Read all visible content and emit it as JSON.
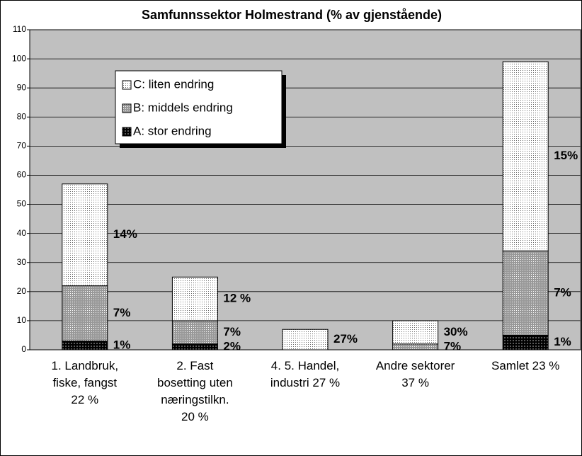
{
  "chart_data": {
    "type": "stacked_bar",
    "title": "Samfunnssektor Holmestrand  (% av gjenstående)",
    "categories": [
      "1. Landbruk,\nfiske, fangst\n22 %",
      "2. Fast\nbosetting uten\nnæringstilkn.\n20 %",
      "4. 5. Handel,\nindustri 27 %",
      "Andre sektorer\n37 %",
      "Samlet 23 %"
    ],
    "series": [
      {
        "name": "A: stor endring",
        "color": "#000000",
        "values": [
          3,
          2,
          0,
          0,
          5
        ],
        "segment_annotations": [
          "1%",
          "2%",
          null,
          null,
          "1%"
        ]
      },
      {
        "name": "B: middels endring",
        "color": "#999999",
        "values": [
          19,
          8,
          0,
          2,
          29
        ],
        "segment_annotations": [
          "7%",
          "7%",
          null,
          "7%",
          "7%"
        ]
      },
      {
        "name": "C: liten endring",
        "color": "#ffffff",
        "values": [
          35,
          15,
          7,
          8,
          65
        ],
        "segment_annotations": [
          "14%",
          "12 %",
          "27%",
          "30%",
          "15%"
        ]
      }
    ],
    "ylim": [
      0,
      110
    ],
    "yticks": [
      0,
      10,
      20,
      30,
      40,
      50,
      60,
      70,
      80,
      90,
      100,
      110
    ],
    "grid": true,
    "plot_background": "#c0c0c0",
    "legend": "upper left"
  }
}
